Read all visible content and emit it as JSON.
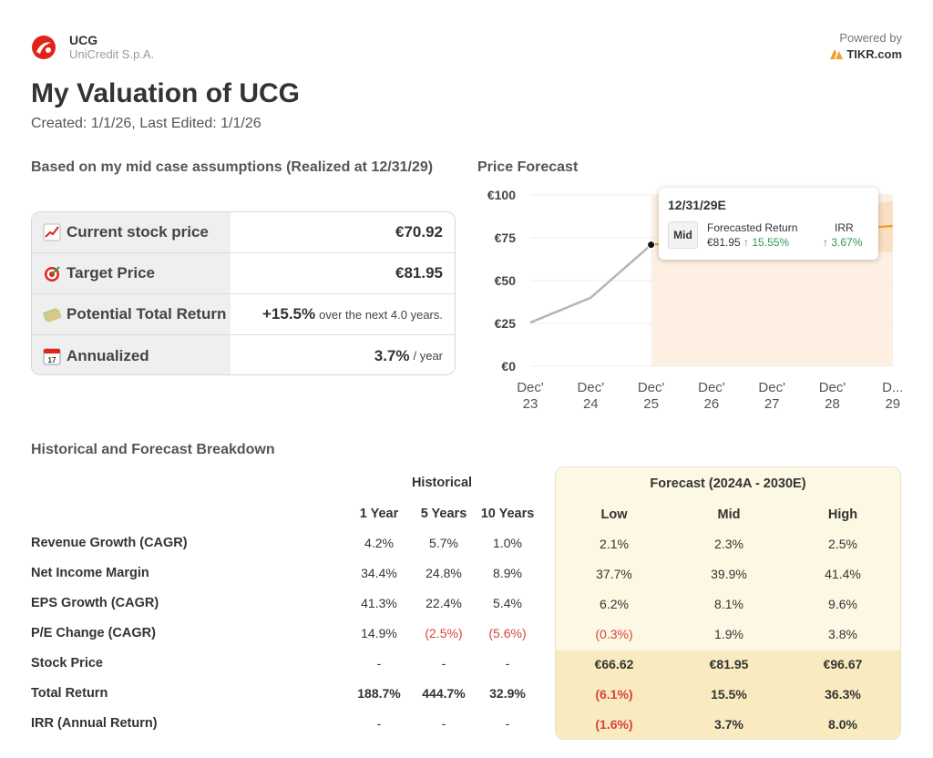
{
  "header": {
    "ticker": "UCG",
    "company": "UniCredit S.p.A.",
    "powered_label": "Powered by",
    "powered_brand": "TIKR.com"
  },
  "title": "My Valuation of UCG",
  "subtitle": "Created: 1/1/26, Last Edited: 1/1/26",
  "summary": {
    "heading": "Based on my mid case assumptions (Realized at 12/31/29)",
    "rows": [
      {
        "label": "Current stock price",
        "value": "€70.92",
        "suffix": "",
        "icon": "chart-increasing-icon"
      },
      {
        "label": "Target Price",
        "value": "€81.95",
        "suffix": "",
        "icon": "target-icon"
      },
      {
        "label": "Potential Total Return",
        "value": "+15.5%",
        "suffix": "over the next 4.0 years.",
        "icon": "money-icon"
      },
      {
        "label": "Annualized",
        "value": "3.7%",
        "suffix": "/ year",
        "icon": "calendar-icon"
      }
    ]
  },
  "chart_data": {
    "type": "line",
    "title": "Price Forecast",
    "y_ticks": [
      "€100",
      "€75",
      "€50",
      "€25",
      "€0"
    ],
    "ylim": [
      0,
      100
    ],
    "x_ticks": [
      [
        "Dec'",
        "23"
      ],
      [
        "Dec'",
        "24"
      ],
      [
        "Dec'",
        "25"
      ],
      [
        "Dec'",
        "26"
      ],
      [
        "Dec'",
        "27"
      ],
      [
        "Dec'",
        "28"
      ],
      [
        "D...",
        "29"
      ]
    ],
    "history": {
      "x": [
        0,
        1,
        2
      ],
      "y": [
        25.5,
        40,
        70.92
      ]
    },
    "forecast_mid": {
      "x": [
        2,
        6
      ],
      "y": [
        70.92,
        81.95
      ]
    },
    "forecast_low": {
      "x": [
        2,
        6
      ],
      "y": [
        70.92,
        66.62
      ]
    },
    "forecast_high": {
      "x": [
        2,
        6
      ],
      "y": [
        70.92,
        96.67
      ]
    },
    "tooltip": {
      "date": "12/31/29E",
      "case": "Mid",
      "forecast_label": "Forecasted Return",
      "forecast_price": "€81.95",
      "forecast_return": "↑ 15.55%",
      "irr_label": "IRR",
      "irr_value": "↑ 3.67%"
    }
  },
  "breakdown": {
    "heading": "Historical and Forecast Breakdown",
    "historical_label": "Historical",
    "forecast_label": "Forecast (2024A - 2030E)",
    "hist_cols": [
      "1 Year",
      "5 Years",
      "10 Years"
    ],
    "fc_cols": [
      "Low",
      "Mid",
      "High"
    ],
    "rows": [
      {
        "label": "Revenue Growth (CAGR)",
        "hist": [
          "4.2%",
          "5.7%",
          "1.0%"
        ],
        "fc": [
          "2.1%",
          "2.3%",
          "2.5%"
        ]
      },
      {
        "label": "Net Income Margin",
        "hist": [
          "34.4%",
          "24.8%",
          "8.9%"
        ],
        "fc": [
          "37.7%",
          "39.9%",
          "41.4%"
        ]
      },
      {
        "label": "EPS Growth (CAGR)",
        "hist": [
          "41.3%",
          "22.4%",
          "5.4%"
        ],
        "fc": [
          "6.2%",
          "8.1%",
          "9.6%"
        ]
      },
      {
        "label": "P/E Change (CAGR)",
        "hist": [
          "14.9%",
          "(2.5%)",
          "(5.6%)"
        ],
        "fc": [
          "(0.3%)",
          "1.9%",
          "3.8%"
        ]
      },
      {
        "label": "Stock Price",
        "hist": [
          "-",
          "-",
          "-"
        ],
        "fc": [
          "€66.62",
          "€81.95",
          "€96.67"
        ]
      },
      {
        "label": "Total Return",
        "hist": [
          "188.7%",
          "444.7%",
          "32.9%"
        ],
        "fc": [
          "(6.1%)",
          "15.5%",
          "36.3%"
        ]
      },
      {
        "label": "IRR (Annual Return)",
        "hist": [
          "-",
          "-",
          "-"
        ],
        "fc": [
          "(1.6%)",
          "3.7%",
          "8.0%"
        ]
      }
    ]
  },
  "colors": {
    "negative": "#d9433a",
    "positive": "#2e9e4f",
    "forecast_bg": "#fdf8e4",
    "forecast_bg_dark": "#f9ebbf",
    "forecast_line": "#f0a030"
  }
}
